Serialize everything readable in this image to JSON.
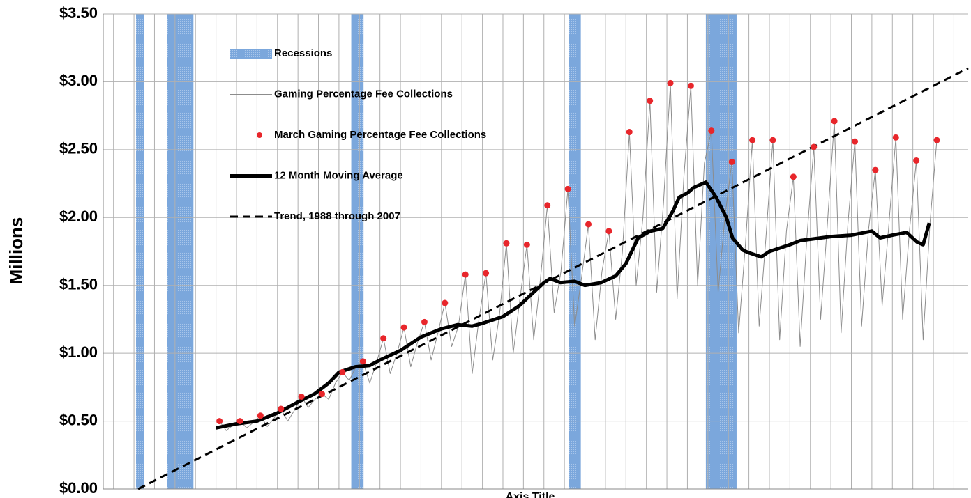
{
  "chart_data": {
    "type": "line",
    "y_label": "Millions",
    "x_label": "Axis Title",
    "xlim": [
      1978.5,
      2020.7
    ],
    "ylim": [
      0,
      3.5
    ],
    "yticks": [
      {
        "value": 0,
        "label": "$0.00"
      },
      {
        "value": 0.5,
        "label": "$0.50"
      },
      {
        "value": 1,
        "label": "$1.00"
      },
      {
        "value": 1.5,
        "label": "$1.50"
      },
      {
        "value": 2,
        "label": "$2.00"
      },
      {
        "value": 2.5,
        "label": "$2.50"
      },
      {
        "value": 3,
        "label": "$3.00"
      },
      {
        "value": 3.5,
        "label": "$3.50"
      }
    ],
    "grid": true,
    "recessions": {
      "name": "Recessions",
      "color": "#7ba7dc",
      "spans": [
        [
          1980.1,
          1980.5
        ],
        [
          1981.6,
          1982.9
        ],
        [
          1990.6,
          1991.2
        ],
        [
          2001.2,
          2001.8
        ],
        [
          2007.9,
          2009.4
        ]
      ]
    },
    "series": [
      {
        "name": "Gaming Percentage Fee Collections",
        "color": "#8c8c8c",
        "style": "thin",
        "x": [
          1984.17,
          1984.5,
          1984.83,
          1985.17,
          1985.5,
          1985.83,
          1986.17,
          1986.5,
          1986.83,
          1987.17,
          1987.5,
          1987.83,
          1988.17,
          1988.5,
          1988.83,
          1989.17,
          1989.5,
          1989.83,
          1990.17,
          1990.5,
          1990.83,
          1991.17,
          1991.5,
          1991.83,
          1992.17,
          1992.5,
          1992.83,
          1993.17,
          1993.5,
          1993.83,
          1994.17,
          1994.5,
          1994.83,
          1995.17,
          1995.5,
          1995.83,
          1996.17,
          1996.5,
          1996.83,
          1997.17,
          1997.5,
          1997.83,
          1998.17,
          1998.5,
          1998.83,
          1999.17,
          1999.5,
          1999.83,
          2000.17,
          2000.5,
          2000.83,
          2001.17,
          2001.5,
          2001.83,
          2002.17,
          2002.5,
          2002.83,
          2003.17,
          2003.5,
          2003.83,
          2004.17,
          2004.5,
          2004.83,
          2005.17,
          2005.5,
          2005.83,
          2006.17,
          2006.5,
          2006.83,
          2007.17,
          2007.5,
          2007.83,
          2008.17,
          2008.5,
          2008.83,
          2009.17,
          2009.5,
          2009.83,
          2010.17,
          2010.5,
          2010.83,
          2011.17,
          2011.5,
          2011.83,
          2012.17,
          2012.5,
          2012.83,
          2013.17,
          2013.5,
          2013.83,
          2014.17,
          2014.5,
          2014.83,
          2015.17,
          2015.5,
          2015.83,
          2016.17,
          2016.5,
          2016.83,
          2017.17,
          2017.5,
          2017.83,
          2018.17,
          2018.5,
          2018.83,
          2019.17
        ],
        "values": [
          0.5,
          0.43,
          0.47,
          0.5,
          0.45,
          0.49,
          0.54,
          0.46,
          0.52,
          0.59,
          0.5,
          0.58,
          0.68,
          0.6,
          0.66,
          0.7,
          0.66,
          0.78,
          0.86,
          0.8,
          0.9,
          0.94,
          0.78,
          0.93,
          1.11,
          0.85,
          1.0,
          1.19,
          0.9,
          1.08,
          1.23,
          0.95,
          1.15,
          1.37,
          1.05,
          1.2,
          1.58,
          0.85,
          1.25,
          1.59,
          0.95,
          1.28,
          1.81,
          1.0,
          1.4,
          1.8,
          1.1,
          1.55,
          2.09,
          1.3,
          1.6,
          2.21,
          1.2,
          1.55,
          1.95,
          1.1,
          1.6,
          1.9,
          1.25,
          1.75,
          2.63,
          1.5,
          2.0,
          2.86,
          1.45,
          2.1,
          2.99,
          1.4,
          2.3,
          2.97,
          1.5,
          2.4,
          2.64,
          1.45,
          2.0,
          2.41,
          1.15,
          1.8,
          2.57,
          1.2,
          1.85,
          2.57,
          1.1,
          1.9,
          2.3,
          1.05,
          1.85,
          2.52,
          1.25,
          1.95,
          2.71,
          1.15,
          1.95,
          2.56,
          1.2,
          1.9,
          2.35,
          1.35,
          1.95,
          2.59,
          1.25,
          1.9,
          2.42,
          1.1,
          1.95,
          2.57
        ]
      },
      {
        "name": "March Gaming Percentage Fee Collections",
        "color": "#e8262b",
        "style": "dots",
        "x": [
          1984.17,
          1985.17,
          1986.17,
          1987.17,
          1988.17,
          1989.17,
          1990.17,
          1991.17,
          1992.17,
          1993.17,
          1994.17,
          1995.17,
          1996.17,
          1997.17,
          1998.17,
          1999.17,
          2000.17,
          2001.17,
          2002.17,
          2003.17,
          2004.17,
          2005.17,
          2006.17,
          2007.17,
          2008.17,
          2009.17,
          2010.17,
          2011.17,
          2012.17,
          2013.17,
          2014.17,
          2015.17,
          2016.17,
          2017.17,
          2018.17,
          2019.17
        ],
        "values": [
          0.5,
          0.5,
          0.54,
          0.59,
          0.68,
          0.7,
          0.86,
          0.94,
          1.11,
          1.19,
          1.23,
          1.37,
          1.58,
          1.59,
          1.81,
          1.8,
          2.09,
          2.21,
          1.95,
          1.9,
          2.63,
          2.86,
          2.99,
          2.97,
          2.64,
          2.41,
          2.57,
          2.57,
          2.3,
          2.52,
          2.71,
          2.56,
          2.35,
          2.59,
          2.42,
          2.57
        ]
      },
      {
        "name": "12 Month Moving Average",
        "color": "#000000",
        "style": "thick",
        "x": [
          1984.0,
          1985,
          1986,
          1987,
          1988,
          1988.8,
          1989.5,
          1990,
          1990.8,
          1991.5,
          1992,
          1993,
          1994,
          1995,
          1995.8,
          1996.5,
          1997,
          1998,
          1998.8,
          1999.5,
          2000,
          2000.3,
          2000.8,
          2001.5,
          2002,
          2002.8,
          2003.5,
          2004,
          2004.6,
          2005.2,
          2005.8,
          2006.3,
          2006.6,
          2007,
          2007.3,
          2007.9,
          2008.4,
          2008.9,
          2009.2,
          2009.7,
          2010,
          2010.6,
          2011,
          2011.6,
          2012,
          2012.5,
          2013,
          2014,
          2015,
          2016,
          2016.4,
          2017,
          2017.7,
          2018.2,
          2018.5,
          2018.8
        ],
        "values": [
          0.45,
          0.48,
          0.5,
          0.56,
          0.64,
          0.7,
          0.78,
          0.86,
          0.9,
          0.91,
          0.95,
          1.02,
          1.12,
          1.18,
          1.21,
          1.2,
          1.22,
          1.27,
          1.35,
          1.45,
          1.52,
          1.55,
          1.52,
          1.53,
          1.5,
          1.52,
          1.57,
          1.66,
          1.85,
          1.9,
          1.92,
          2.05,
          2.15,
          2.18,
          2.22,
          2.26,
          2.15,
          2.0,
          1.85,
          1.76,
          1.74,
          1.71,
          1.75,
          1.78,
          1.8,
          1.83,
          1.84,
          1.86,
          1.87,
          1.9,
          1.85,
          1.87,
          1.89,
          1.82,
          1.8,
          1.96
        ]
      },
      {
        "name": "Trend, 1988 through 2007",
        "color": "#000000",
        "style": "dashed",
        "x": [
          1980.2,
          2020.7
        ],
        "values": [
          0,
          3.1
        ]
      }
    ]
  }
}
